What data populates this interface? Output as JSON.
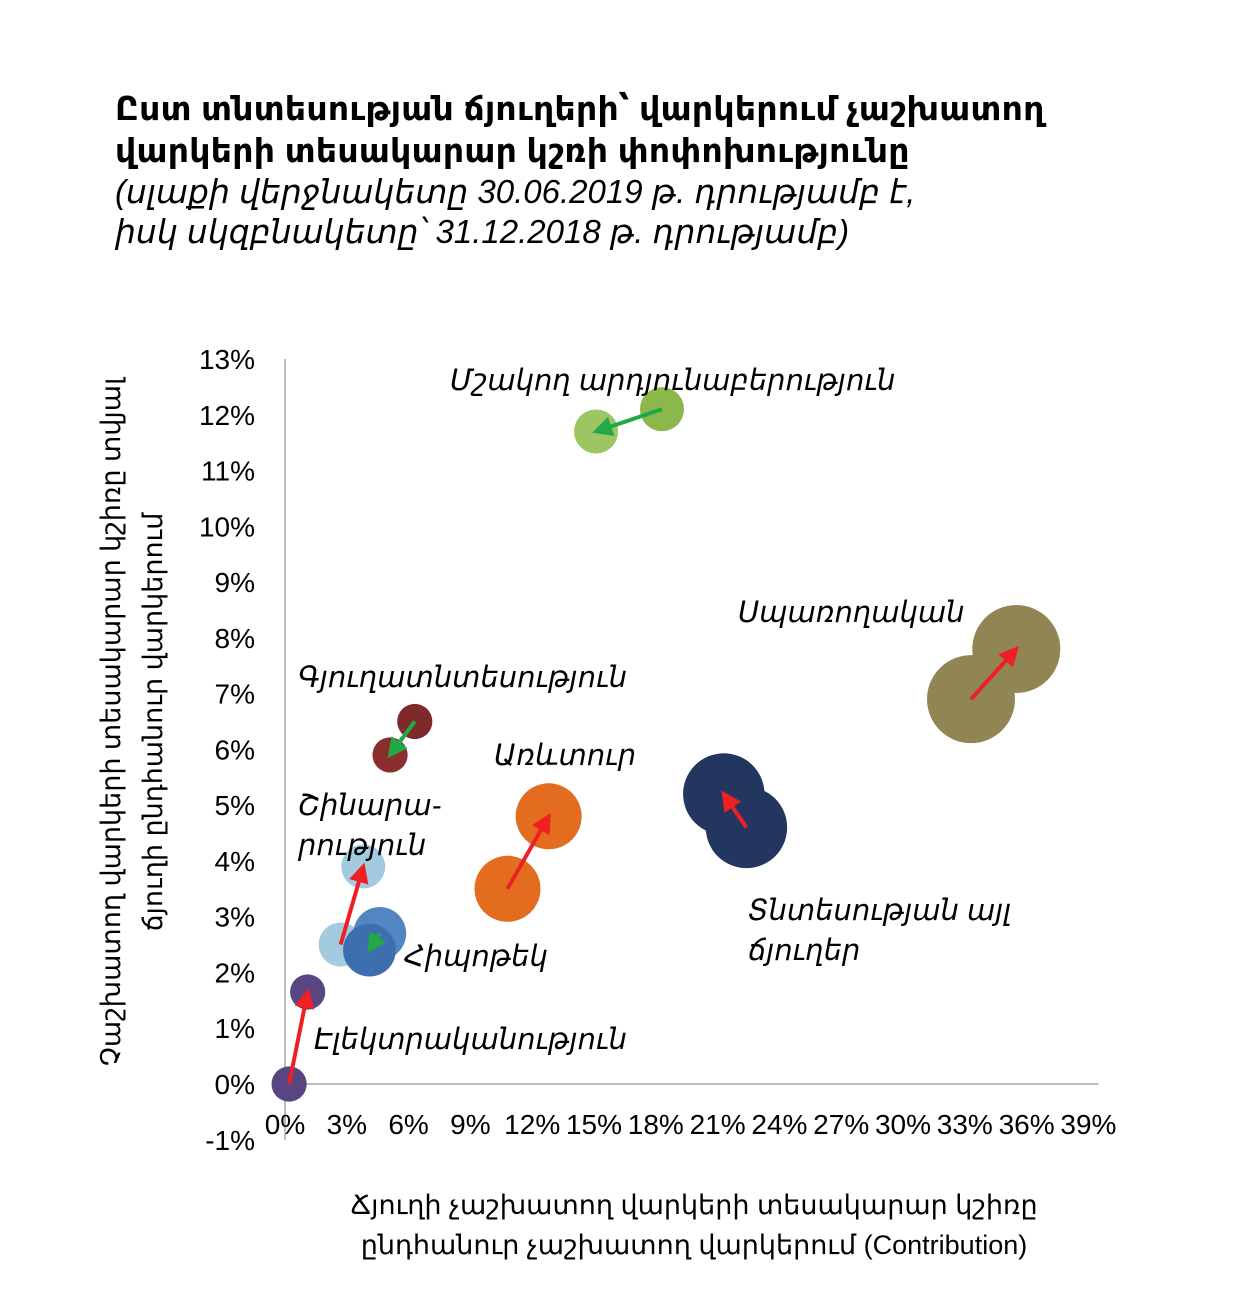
{
  "title": {
    "line1": "Ըստ տնտեսության ճյուղերի՝ վարկերում չաշխատող",
    "line2": "վարկերի տեսակարար կշռի փոփոխությունը",
    "subtitle1": "(սլաքի վերջնակետը 30.06.2019 թ. դրությամբ է,",
    "subtitle2": "իսկ  սկզբնակետը՝ 31.12.2018 թ. դրությամբ)"
  },
  "chart_data": {
    "type": "scatter",
    "xlabel_lines": [
      "Ճյուղի չաշխատող վարկերի տեսակարար կշիռը",
      "ընդհանուր չաշխատող վարկերում (Contribution)"
    ],
    "ylabel_lines": [
      "Չաշխատող վարկերի տեսակարար կշիռը տվյալ",
      "ճյուղի ընդհանուր վարկերում"
    ],
    "xlim": [
      0,
      39
    ],
    "ylim": [
      -1,
      13
    ],
    "x_ticks": [
      "0%",
      "3%",
      "6%",
      "9%",
      "12%",
      "15%",
      "18%",
      "21%",
      "24%",
      "27%",
      "30%",
      "33%",
      "36%",
      "39%"
    ],
    "y_ticks": [
      "-1%",
      "0%",
      "1%",
      "2%",
      "3%",
      "4%",
      "5%",
      "6%",
      "7%",
      "8%",
      "9%",
      "10%",
      "11%",
      "12%",
      "13%"
    ],
    "legend_entries": [],
    "series": [
      {
        "label": "Մշակող արդյունաբերություն",
        "start": {
          "x": 18.3,
          "y": 12.1
        },
        "end": {
          "x": 15.1,
          "y": 11.7
        },
        "color_start": "#8cb84b",
        "color_end": "#9cc661",
        "arrow_color": "#22a846",
        "size": 1.0
      },
      {
        "label": "Սպառողական",
        "start": {
          "x": 33.3,
          "y": 6.9
        },
        "end": {
          "x": 35.5,
          "y": 7.8
        },
        "color_start": "#918554",
        "color_end": "#918554",
        "arrow_color": "#ee2024",
        "size": 2.0
      },
      {
        "label": "Գյուղատնտեսություն",
        "start": {
          "x": 6.3,
          "y": 6.5
        },
        "end": {
          "x": 5.1,
          "y": 5.9
        },
        "color_start": "#7e2a2a",
        "color_end": "#8a2e2e",
        "arrow_color": "#22a846",
        "size": 0.8
      },
      {
        "label": "Առևտուր",
        "start": {
          "x": 10.8,
          "y": 3.5
        },
        "end": {
          "x": 12.8,
          "y": 4.8
        },
        "color_start": "#e36c1e",
        "color_end": "#e36c1e",
        "arrow_color": "#ee2024",
        "size": 1.5
      },
      {
        "label": "Տնտեսության այլ ճյուղեր",
        "start": {
          "x": 22.4,
          "y": 4.6
        },
        "end": {
          "x": 21.3,
          "y": 5.2
        },
        "color_start": "#22365f",
        "color_end": "#22365f",
        "arrow_color": "#ee2024",
        "size": 1.85
      },
      {
        "label": "Շինարարություն",
        "start": {
          "x": 2.7,
          "y": 2.5
        },
        "end": {
          "x": 3.8,
          "y": 3.9
        },
        "color_start": "#a2cbe0",
        "color_end": "#a2cbe0",
        "arrow_color": "#ee2024",
        "size": 1.0
      },
      {
        "label": "Հիպոթեկ",
        "start": {
          "x": 4.6,
          "y": 2.7
        },
        "end": {
          "x": 4.1,
          "y": 2.4
        },
        "color_start": "#5286c3",
        "color_end": "#3c6eb0",
        "arrow_color": "#22a846",
        "size": 1.2
      },
      {
        "label": "Էլեկտրականություն",
        "start": {
          "x": 0.2,
          "y": 0.0
        },
        "end": {
          "x": 1.1,
          "y": 1.65
        },
        "color_start": "#5a4583",
        "color_end": "#5a4583",
        "arrow_color": "#ee2024",
        "size": 0.8
      }
    ],
    "category_labels": [
      {
        "lines": [
          "Մշակող արդյունաբերություն"
        ],
        "anchor": "mfg"
      },
      {
        "lines": [
          "Սպառողական"
        ],
        "anchor": "consumer"
      },
      {
        "lines": [
          "Գյուղատնտեսություն"
        ],
        "anchor": "agri"
      },
      {
        "lines": [
          "Առևտուր"
        ],
        "anchor": "trade"
      },
      {
        "lines": [
          "Տնտեսության այլ",
          "ճյուղեր"
        ],
        "anchor": "other"
      },
      {
        "lines": [
          "Շինարա-",
          "րություն"
        ],
        "anchor": "construction"
      },
      {
        "lines": [
          "Հիպոթեկ"
        ],
        "anchor": "mortgage"
      },
      {
        "lines": [
          "Էլեկտրականություն"
        ],
        "anchor": "electricity"
      }
    ],
    "grid": false
  }
}
